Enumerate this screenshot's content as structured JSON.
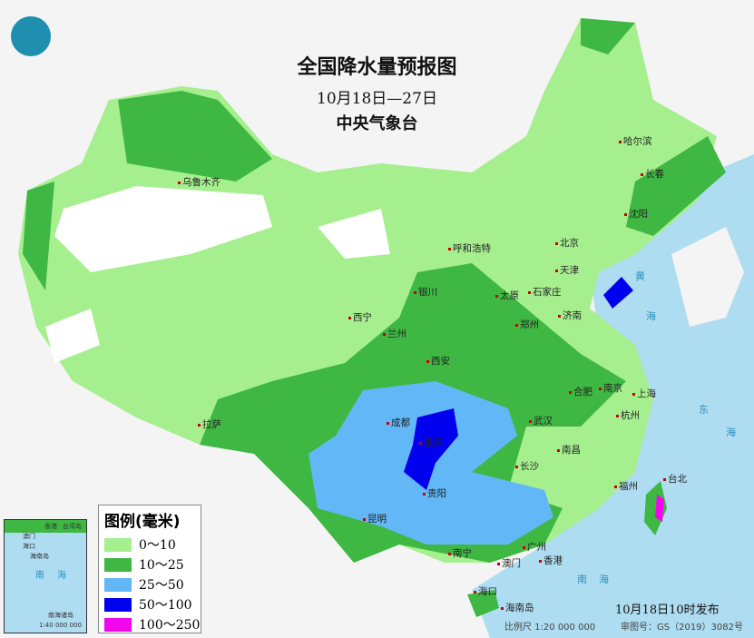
{
  "title": "全国降水量预报图",
  "period": "10月18日—27日",
  "issuer": "中央气象台",
  "issued": "10月18日10时发布",
  "scale": "比例尺 1:20 000 000",
  "review_no": "审图号：GS（2019）3082号",
  "legend": {
    "title": "图例(毫米)",
    "items": [
      {
        "label": "0～10",
        "color": "#a6ef8f"
      },
      {
        "label": "10～25",
        "color": "#3fb743"
      },
      {
        "label": "25～50",
        "color": "#62b7f6"
      },
      {
        "label": "50～100",
        "color": "#0000ee"
      },
      {
        "label": "100～250",
        "color": "#f207ec"
      }
    ]
  },
  "colors": {
    "sea": "#aedcf0",
    "land_no_rain": "#ffffff",
    "outside": "#f4f4f4"
  },
  "cities": [
    "乌鲁木齐",
    "哈尔滨",
    "长春",
    "沈阳",
    "北京",
    "天津",
    "呼和浩特",
    "石家庄",
    "太原",
    "银川",
    "济南",
    "西宁",
    "兰州",
    "西安",
    "郑州",
    "合肥",
    "南京",
    "上海",
    "杭州",
    "武汉",
    "成都",
    "重庆",
    "长沙",
    "南昌",
    "拉萨",
    "贵阳",
    "昆明",
    "福州",
    "台北",
    "南宁",
    "广州",
    "香港",
    "澳门",
    "海口",
    "海南岛"
  ],
  "seas": [
    "黄",
    "海",
    "东",
    "海",
    "南",
    "海"
  ],
  "inset": {
    "labels": [
      "香港",
      "澳门",
      "台湾岛",
      "海口",
      "海南岛",
      "南",
      "海",
      "南海诸岛"
    ],
    "scale": "1:40 000 000"
  }
}
